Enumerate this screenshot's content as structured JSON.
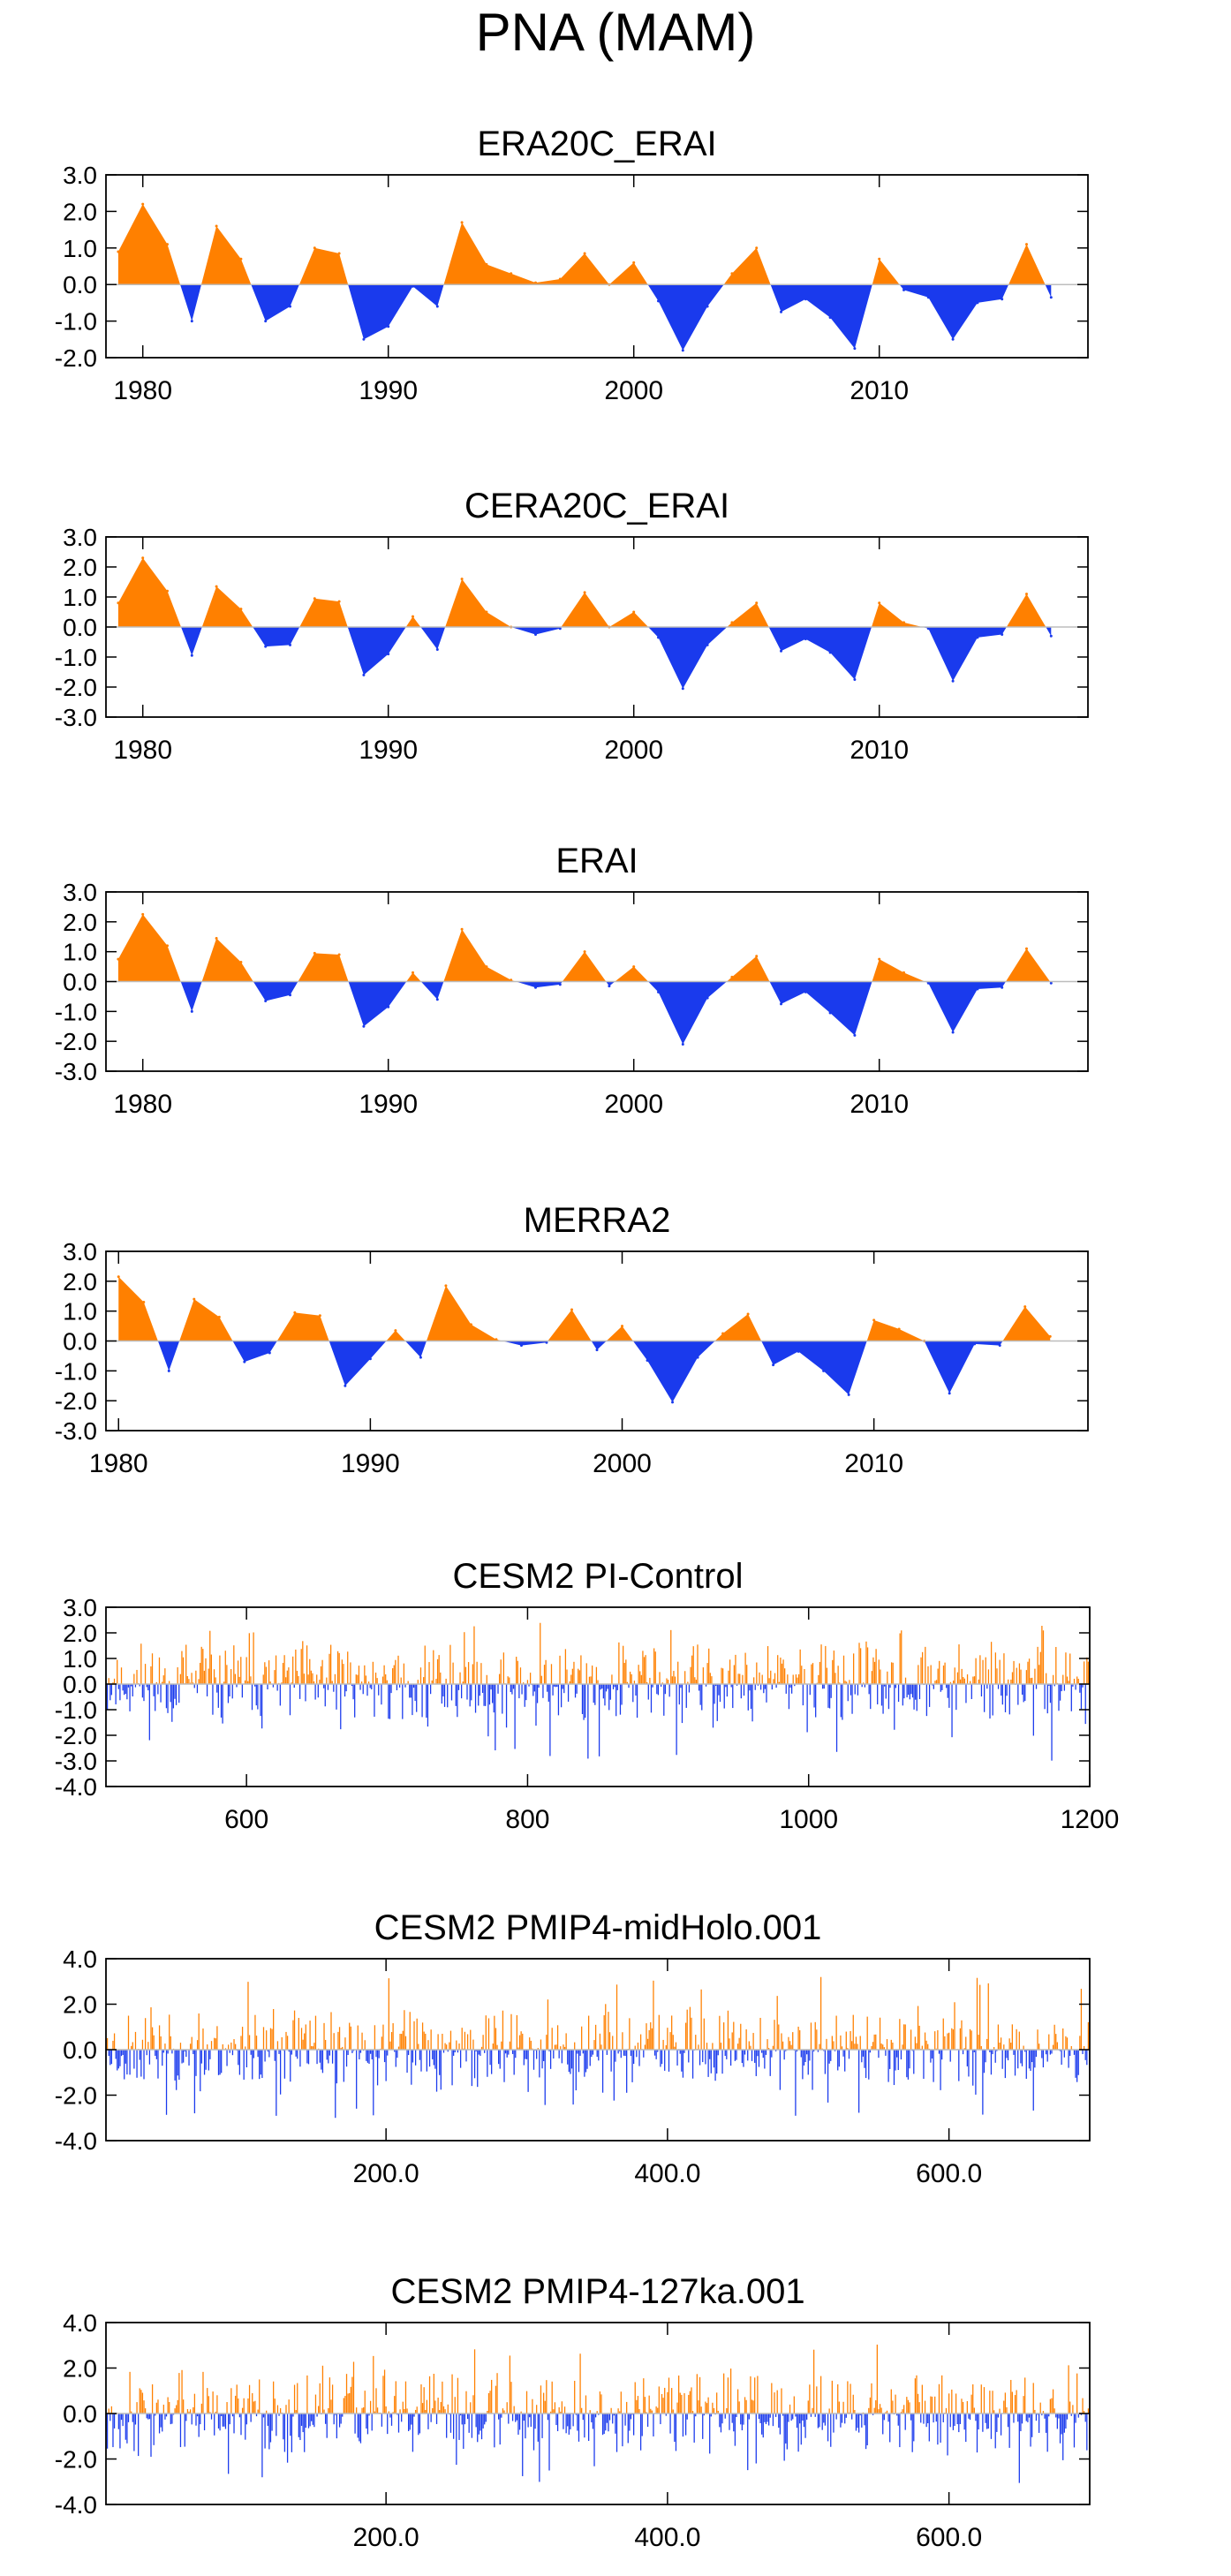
{
  "page_title": "PNA (MAM)",
  "colors": {
    "positive": "#ff8000",
    "negative": "#1a3aed",
    "axis": "#000000",
    "zero_line": "#bdbdbd"
  },
  "chart_data": [
    {
      "type": "area",
      "title": "ERA20C_ERAI",
      "xlim": [
        1978.5,
        2018.5
      ],
      "ylim": [
        -2.0,
        3.0
      ],
      "yticks": [
        3.0,
        2.0,
        1.0,
        0.0,
        -1.0,
        -2.0
      ],
      "yticklabels": [
        "3.0",
        "2.0",
        "1.0",
        "0.0",
        "-1.0",
        "-2.0"
      ],
      "xticks": [
        1980,
        1990,
        2000,
        2010
      ],
      "xticklabels": [
        "1980",
        "1990",
        "2000",
        "2010"
      ],
      "x": [
        1979,
        1980,
        1981,
        1982,
        1983,
        1984,
        1985,
        1986,
        1987,
        1988,
        1989,
        1990,
        1991,
        1992,
        1993,
        1994,
        1995,
        1996,
        1997,
        1998,
        1999,
        2000,
        2001,
        2002,
        2003,
        2004,
        2005,
        2006,
        2007,
        2008,
        2009,
        2010,
        2011,
        2012,
        2013,
        2014,
        2015,
        2016,
        2017
      ],
      "values": [
        0.9,
        2.2,
        1.1,
        -1.0,
        1.6,
        0.7,
        -1.0,
        -0.6,
        1.0,
        0.85,
        -1.5,
        -1.15,
        -0.05,
        -0.6,
        1.7,
        0.55,
        0.3,
        0.05,
        0.15,
        0.85,
        0.0,
        0.6,
        -0.45,
        -1.8,
        -0.6,
        0.3,
        1.0,
        -0.75,
        -0.4,
        -0.9,
        -1.75,
        0.7,
        -0.15,
        -0.35,
        -1.5,
        -0.5,
        -0.4,
        1.1,
        -0.35
      ]
    },
    {
      "type": "area",
      "title": "CERA20C_ERAI",
      "xlim": [
        1978.5,
        2018.5
      ],
      "ylim": [
        -3.0,
        3.0
      ],
      "yticks": [
        3.0,
        2.0,
        1.0,
        0.0,
        -1.0,
        -2.0,
        -3.0
      ],
      "yticklabels": [
        "3.0",
        "2.0",
        "1.0",
        "0.0",
        "-1.0",
        "-2.0",
        "-3.0"
      ],
      "xticks": [
        1980,
        1990,
        2000,
        2010
      ],
      "xticklabels": [
        "1980",
        "1990",
        "2000",
        "2010"
      ],
      "x": [
        1979,
        1980,
        1981,
        1982,
        1983,
        1984,
        1985,
        1986,
        1987,
        1988,
        1989,
        1990,
        1991,
        1992,
        1993,
        1994,
        1995,
        1996,
        1997,
        1998,
        1999,
        2000,
        2001,
        2002,
        2003,
        2004,
        2005,
        2006,
        2007,
        2008,
        2009,
        2010,
        2011,
        2012,
        2013,
        2014,
        2015,
        2016,
        2017
      ],
      "values": [
        0.8,
        2.3,
        1.2,
        -0.95,
        1.35,
        0.6,
        -0.65,
        -0.6,
        0.95,
        0.85,
        -1.6,
        -0.9,
        0.35,
        -0.75,
        1.6,
        0.5,
        0.0,
        -0.25,
        -0.05,
        1.15,
        0.0,
        0.5,
        -0.35,
        -2.05,
        -0.6,
        0.15,
        0.8,
        -0.8,
        -0.4,
        -0.85,
        -1.75,
        0.8,
        0.15,
        -0.05,
        -1.8,
        -0.35,
        -0.25,
        1.1,
        -0.3
      ]
    },
    {
      "type": "area",
      "title": "ERAI",
      "xlim": [
        1978.5,
        2018.5
      ],
      "ylim": [
        -3.0,
        3.0
      ],
      "yticks": [
        3.0,
        2.0,
        1.0,
        0.0,
        -1.0,
        -2.0,
        -3.0
      ],
      "yticklabels": [
        "3.0",
        "2.0",
        "1.0",
        "0.0",
        "-1.0",
        "-2.0",
        "-3.0"
      ],
      "xticks": [
        1980,
        1990,
        2000,
        2010
      ],
      "xticklabels": [
        "1980",
        "1990",
        "2000",
        "2010"
      ],
      "x": [
        1979,
        1980,
        1981,
        1982,
        1983,
        1984,
        1985,
        1986,
        1987,
        1988,
        1989,
        1990,
        1991,
        1992,
        1993,
        1994,
        1995,
        1996,
        1997,
        1998,
        1999,
        2000,
        2001,
        2002,
        2003,
        2004,
        2005,
        2006,
        2007,
        2008,
        2009,
        2010,
        2011,
        2012,
        2013,
        2014,
        2015,
        2016,
        2017
      ],
      "values": [
        0.75,
        2.25,
        1.2,
        -1.0,
        1.45,
        0.65,
        -0.65,
        -0.45,
        0.95,
        0.9,
        -1.5,
        -0.85,
        0.3,
        -0.6,
        1.75,
        0.5,
        0.05,
        -0.2,
        -0.1,
        1.0,
        -0.15,
        0.5,
        -0.35,
        -2.1,
        -0.55,
        0.15,
        0.85,
        -0.75,
        -0.35,
        -1.05,
        -1.8,
        0.75,
        0.3,
        -0.05,
        -1.7,
        -0.25,
        -0.2,
        1.1,
        -0.05
      ]
    },
    {
      "type": "area",
      "title": "MERRA2",
      "xlim": [
        1979.5,
        2018.5
      ],
      "ylim": [
        -3.0,
        3.0
      ],
      "yticks": [
        3.0,
        2.0,
        1.0,
        0.0,
        -1.0,
        -2.0,
        -3.0
      ],
      "yticklabels": [
        "3.0",
        "2.0",
        "1.0",
        "0.0",
        "-1.0",
        "-2.0",
        "-3.0"
      ],
      "xticks": [
        1980,
        1990,
        2000,
        2010
      ],
      "xticklabels": [
        "1980",
        "1990",
        "2000",
        "2010"
      ],
      "x": [
        1980,
        1981,
        1982,
        1983,
        1984,
        1985,
        1986,
        1987,
        1988,
        1989,
        1990,
        1991,
        1992,
        1993,
        1994,
        1995,
        1996,
        1997,
        1998,
        1999,
        2000,
        2001,
        2002,
        2003,
        2004,
        2005,
        2006,
        2007,
        2008,
        2009,
        2010,
        2011,
        2012,
        2013,
        2014,
        2015,
        2016,
        2017
      ],
      "values": [
        2.15,
        1.3,
        -1.0,
        1.4,
        0.8,
        -0.7,
        -0.4,
        0.95,
        0.85,
        -1.5,
        -0.6,
        0.35,
        -0.55,
        1.85,
        0.55,
        0.05,
        -0.15,
        -0.05,
        1.05,
        -0.3,
        0.5,
        -0.65,
        -2.05,
        -0.55,
        0.25,
        0.9,
        -0.8,
        -0.35,
        -1.0,
        -1.8,
        0.7,
        0.4,
        0.0,
        -1.75,
        -0.1,
        -0.15,
        1.15,
        0.15
      ]
    },
    {
      "type": "bar",
      "title": "CESM2 PI-Control",
      "xlim": [
        500,
        1200
      ],
      "ylim": [
        -4.0,
        3.0
      ],
      "yticks": [
        3.0,
        2.0,
        1.0,
        0.0,
        -1.0,
        -2.0,
        -3.0,
        -4.0
      ],
      "yticklabels": [
        "3.0",
        "2.0",
        "1.0",
        "0.0",
        "-1.0",
        "-2.0",
        "-3.0",
        "-4.0"
      ],
      "xticks": [
        600,
        800,
        1000,
        1200
      ],
      "xticklabels": [
        "600",
        "800",
        "1000",
        "1200"
      ],
      "x_start": 501,
      "count": 700,
      "amplitude": 1.0,
      "spike_max": 2.4,
      "spike_min": -3.0,
      "seed": 11
    },
    {
      "type": "bar",
      "title": "CESM2 PMIP4-midHolo.001",
      "xlim": [
        1,
        700
      ],
      "ylim": [
        -4.0,
        4.0
      ],
      "yticks": [
        4.0,
        2.0,
        0.0,
        -2.0,
        -4.0
      ],
      "yticklabels": [
        "4.0",
        "2.0",
        "0.0",
        "-2.0",
        "-4.0"
      ],
      "xticks": [
        200,
        400,
        600
      ],
      "xticklabels": [
        "200.0",
        "400.0",
        "600.0"
      ],
      "x_start": 1,
      "count": 700,
      "amplitude": 1.1,
      "spike_max": 3.3,
      "spike_min": -3.0,
      "seed": 23
    },
    {
      "type": "bar",
      "title": "CESM2 PMIP4-127ka.001",
      "xlim": [
        1,
        700
      ],
      "ylim": [
        -4.0,
        4.0
      ],
      "yticks": [
        4.0,
        2.0,
        0.0,
        -2.0,
        -4.0
      ],
      "yticklabels": [
        "4.0",
        "2.0",
        "0.0",
        "-2.0",
        "-4.0"
      ],
      "xticks": [
        200,
        400,
        600
      ],
      "xticklabels": [
        "200.0",
        "400.0",
        "600.0"
      ],
      "x_start": 1,
      "count": 700,
      "amplitude": 1.1,
      "spike_max": 3.1,
      "spike_min": -3.1,
      "seed": 37
    }
  ]
}
